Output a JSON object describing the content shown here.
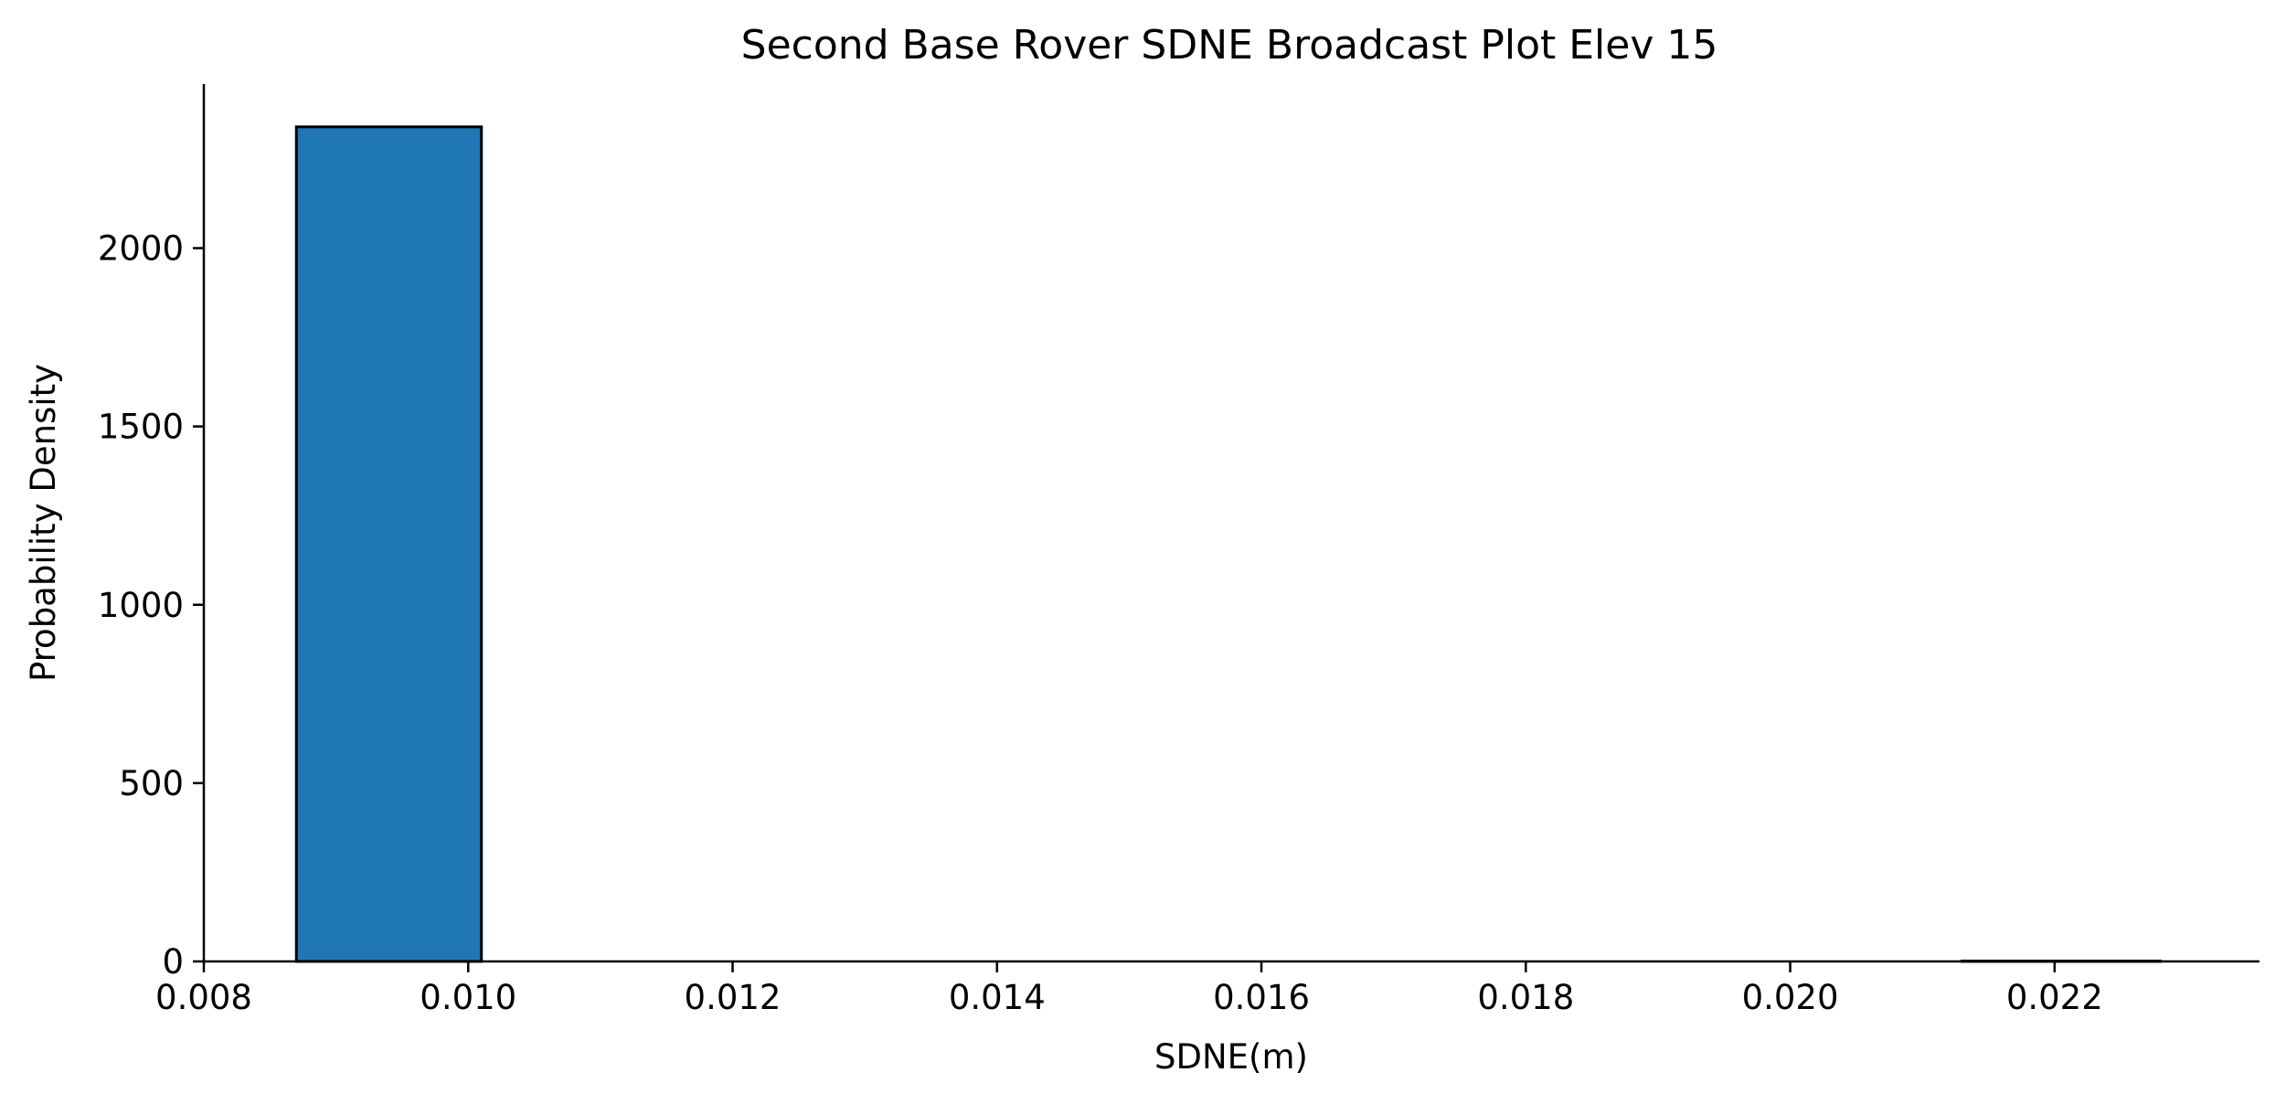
{
  "chart_data": {
    "type": "bar",
    "title": "Second Base Rover SDNE Broadcast Plot Elev 15",
    "xlabel": "SDNE(m)",
    "ylabel": "Probability Density",
    "xlim": [
      0.008,
      0.02355
    ],
    "ylim": [
      0,
      2460
    ],
    "x_ticks": [
      0.008,
      0.01,
      0.012,
      0.014,
      0.016,
      0.018,
      0.02,
      0.022
    ],
    "x_tick_labels": [
      "0.008",
      "0.010",
      "0.012",
      "0.014",
      "0.016",
      "0.018",
      "0.020",
      "0.022"
    ],
    "y_ticks": [
      0,
      500,
      1000,
      1500,
      2000
    ],
    "y_tick_labels": [
      "0",
      "500",
      "1000",
      "1500",
      "2000"
    ],
    "bins": [
      {
        "x_start": 0.0087,
        "x_end": 0.0101,
        "value": 2340
      },
      {
        "x_start": 0.0101,
        "x_end": 0.0115,
        "value": 0
      },
      {
        "x_start": 0.0115,
        "x_end": 0.0129,
        "value": 0
      },
      {
        "x_start": 0.0129,
        "x_end": 0.0143,
        "value": 0
      },
      {
        "x_start": 0.0143,
        "x_end": 0.0157,
        "value": 0
      },
      {
        "x_start": 0.0157,
        "x_end": 0.0171,
        "value": 0
      },
      {
        "x_start": 0.0171,
        "x_end": 0.0185,
        "value": 0
      },
      {
        "x_start": 0.0185,
        "x_end": 0.0199,
        "value": 0
      },
      {
        "x_start": 0.0199,
        "x_end": 0.0213,
        "value": 0
      },
      {
        "x_start": 0.0213,
        "x_end": 0.0228,
        "value": 1
      }
    ],
    "bar_color": "#1f77b4",
    "edge_color": "#000000",
    "grid": false,
    "legend": "none"
  }
}
